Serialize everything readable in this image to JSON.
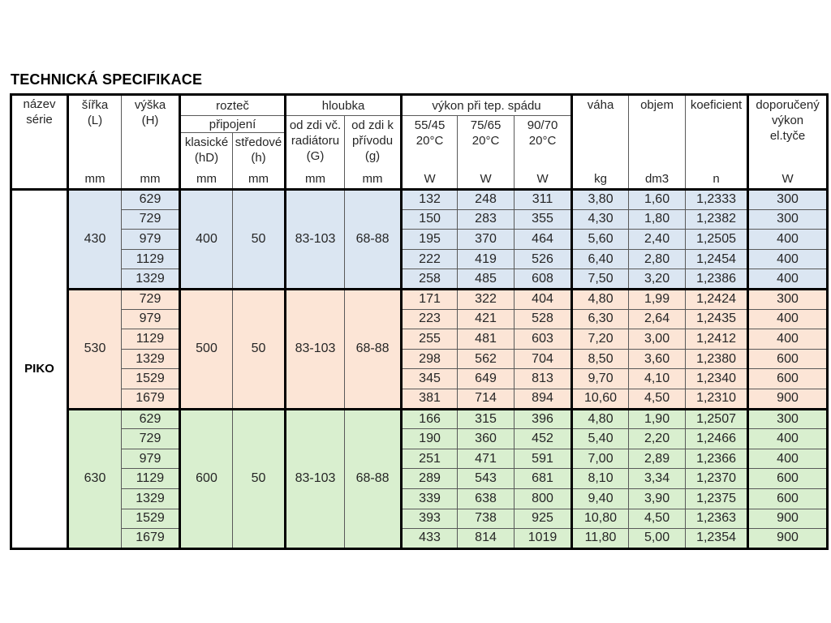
{
  "title": "TECHNICKÁ SPECIFIKACE",
  "table": {
    "header": {
      "nazev_serie": "název\nsérie",
      "sirka": {
        "label": "šířka\n(L)",
        "unit": "mm"
      },
      "vyska": {
        "label": "výška\n(H)",
        "unit": "mm"
      },
      "roztec": "rozteč",
      "pripojeni": "připojení",
      "klasicke": {
        "label": "klasické\n(hD)",
        "unit": "mm"
      },
      "stredove": {
        "label": "středové\n(h)",
        "unit": "mm"
      },
      "hloubka": "hloubka",
      "od_zdi_vc": {
        "label": "od zdi vč.\nradiátoru\n(G)",
        "unit": "mm"
      },
      "od_zdi_k": {
        "label": "od zdi k\npřívodu\n(g)",
        "unit": "mm"
      },
      "vykon": "výkon při tep. spádu",
      "spad_5545": {
        "label": "55/45\n20°C",
        "unit": "W"
      },
      "spad_7565": {
        "label": "75/65\n20°C",
        "unit": "W"
      },
      "spad_9070": {
        "label": "90/70\n20°C",
        "unit": "W"
      },
      "vaha": {
        "label": "váha",
        "unit": "kg"
      },
      "objem": {
        "label": "objem",
        "unit": "dm3"
      },
      "koeficient": {
        "label": "koeficient",
        "unit": "n"
      },
      "doporuceny": {
        "label": "doporučený\nvýkon\nel.tyče",
        "unit": "W"
      }
    },
    "series": "PIKO",
    "groups": [
      {
        "color": "#dbe6f2",
        "sirka": "430",
        "klasicke": "400",
        "stredove": "50",
        "hloubka_g": "83-103",
        "hloubka_g2": "68-88",
        "rows": [
          [
            "629",
            "132",
            "248",
            "311",
            "3,80",
            "1,60",
            "1,2333",
            "300"
          ],
          [
            "729",
            "150",
            "283",
            "355",
            "4,30",
            "1,80",
            "1,2382",
            "300"
          ],
          [
            "979",
            "195",
            "370",
            "464",
            "5,60",
            "2,40",
            "1,2505",
            "400"
          ],
          [
            "1129",
            "222",
            "419",
            "526",
            "6,40",
            "2,80",
            "1,2454",
            "400"
          ],
          [
            "1329",
            "258",
            "485",
            "608",
            "7,50",
            "3,20",
            "1,2386",
            "400"
          ]
        ]
      },
      {
        "color": "#fce5d6",
        "sirka": "530",
        "klasicke": "500",
        "stredove": "50",
        "hloubka_g": "83-103",
        "hloubka_g2": "68-88",
        "rows": [
          [
            "729",
            "171",
            "322",
            "404",
            "4,80",
            "1,99",
            "1,2424",
            "300"
          ],
          [
            "979",
            "223",
            "421",
            "528",
            "6,30",
            "2,64",
            "1,2435",
            "400"
          ],
          [
            "1129",
            "255",
            "481",
            "603",
            "7,20",
            "3,00",
            "1,2412",
            "400"
          ],
          [
            "1329",
            "298",
            "562",
            "704",
            "8,50",
            "3,60",
            "1,2380",
            "600"
          ],
          [
            "1529",
            "345",
            "649",
            "813",
            "9,70",
            "4,10",
            "1,2340",
            "600"
          ],
          [
            "1679",
            "381",
            "714",
            "894",
            "10,60",
            "4,50",
            "1,2310",
            "900"
          ]
        ]
      },
      {
        "color": "#d9efcf",
        "sirka": "630",
        "klasicke": "600",
        "stredove": "50",
        "hloubka_g": "83-103",
        "hloubka_g2": "68-88",
        "rows": [
          [
            "629",
            "166",
            "315",
            "396",
            "4,80",
            "1,90",
            "1,2507",
            "300"
          ],
          [
            "729",
            "190",
            "360",
            "452",
            "5,40",
            "2,20",
            "1,2466",
            "400"
          ],
          [
            "979",
            "251",
            "471",
            "591",
            "7,00",
            "2,89",
            "1,2366",
            "400"
          ],
          [
            "1129",
            "289",
            "543",
            "681",
            "8,10",
            "3,34",
            "1,2370",
            "600"
          ],
          [
            "1329",
            "339",
            "638",
            "800",
            "9,40",
            "3,90",
            "1,2375",
            "600"
          ],
          [
            "1529",
            "393",
            "738",
            "925",
            "10,80",
            "4,50",
            "1,2363",
            "900"
          ],
          [
            "1679",
            "433",
            "814",
            "1019",
            "11,80",
            "5,00",
            "1,2354",
            "900"
          ]
        ]
      }
    ]
  }
}
